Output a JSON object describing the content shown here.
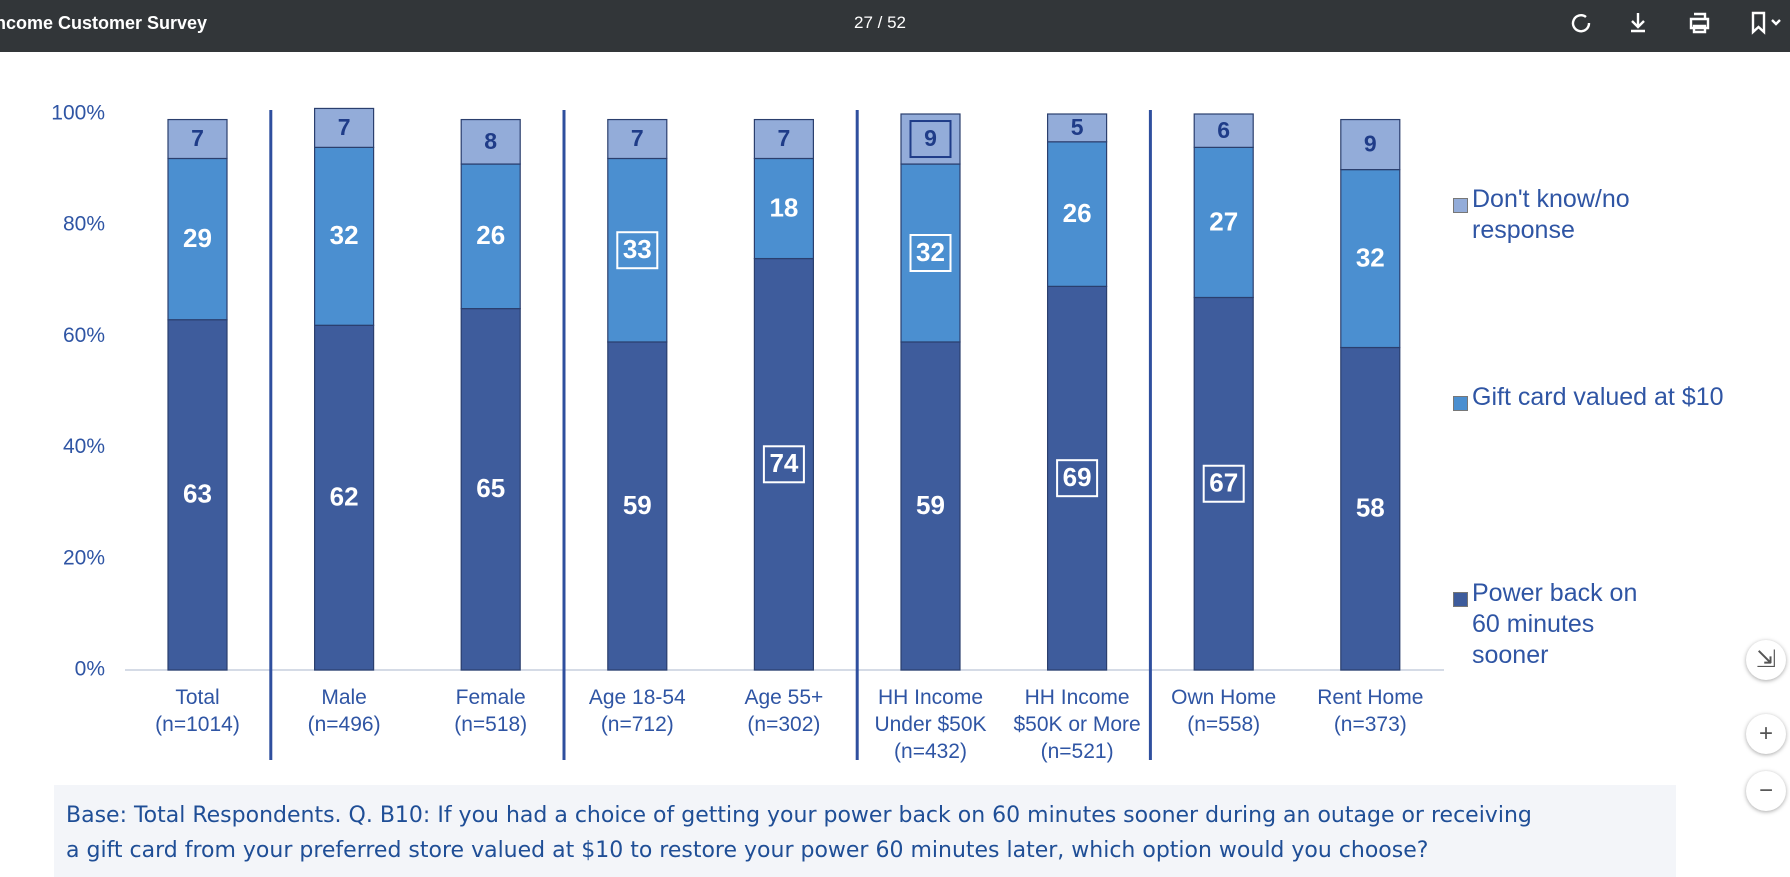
{
  "viewer": {
    "title": "Income Customer Survey",
    "page": "27 / 52"
  },
  "chart_data": {
    "type": "stacked_bar",
    "categories": [
      "Total\n(n=1014)",
      "Male\n(n=496)",
      "Female\n(n=518)",
      "Age 18-54\n(n=712)",
      "Age 55+\n(n=302)",
      "HH Income\nUnder $50K\n(n=432)",
      "HH Income\n$50K or More\n(n=521)",
      "Own Home\n(n=558)",
      "Rent Home\n(n=373)"
    ],
    "series": [
      {
        "name": "Power back on 60 minutes sooner",
        "color": "#3e5c9c",
        "label_color": "#ffffff",
        "values": [
          63,
          62,
          65,
          59,
          74,
          59,
          69,
          67,
          58
        ],
        "highlighted": [
          false,
          false,
          false,
          false,
          true,
          false,
          true,
          true,
          false
        ]
      },
      {
        "name": "Gift card valued at $10",
        "color": "#4b8fd0",
        "label_color": "#ffffff",
        "values": [
          29,
          32,
          26,
          33,
          18,
          32,
          26,
          27,
          32
        ],
        "highlighted": [
          false,
          false,
          false,
          true,
          false,
          true,
          false,
          false,
          false
        ]
      },
      {
        "name": "Don't know/no response",
        "color": "#93acd9",
        "label_color": "#1f3c88",
        "values": [
          7,
          7,
          8,
          7,
          7,
          9,
          5,
          6,
          9
        ],
        "highlighted": [
          false,
          false,
          false,
          false,
          false,
          true,
          false,
          false,
          false
        ]
      }
    ],
    "ylim": [
      0,
      100
    ],
    "yticks": [
      {
        "value": 0,
        "label": "0%"
      },
      {
        "value": 20,
        "label": "20%"
      },
      {
        "value": 40,
        "label": "40%"
      },
      {
        "value": 60,
        "label": "60%"
      },
      {
        "value": 80,
        "label": "80%"
      },
      {
        "value": 100,
        "label": "100%"
      }
    ],
    "grid": false,
    "legend": "right"
  },
  "footnote": [
    "Base: Total Respondents. Q. B10: If you had a choice of getting your power back on 60 minutes sooner during an outage or receiving",
    "a gift card from your preferred store valued at $10 to restore your power 60 minutes later, which option would you choose?"
  ]
}
